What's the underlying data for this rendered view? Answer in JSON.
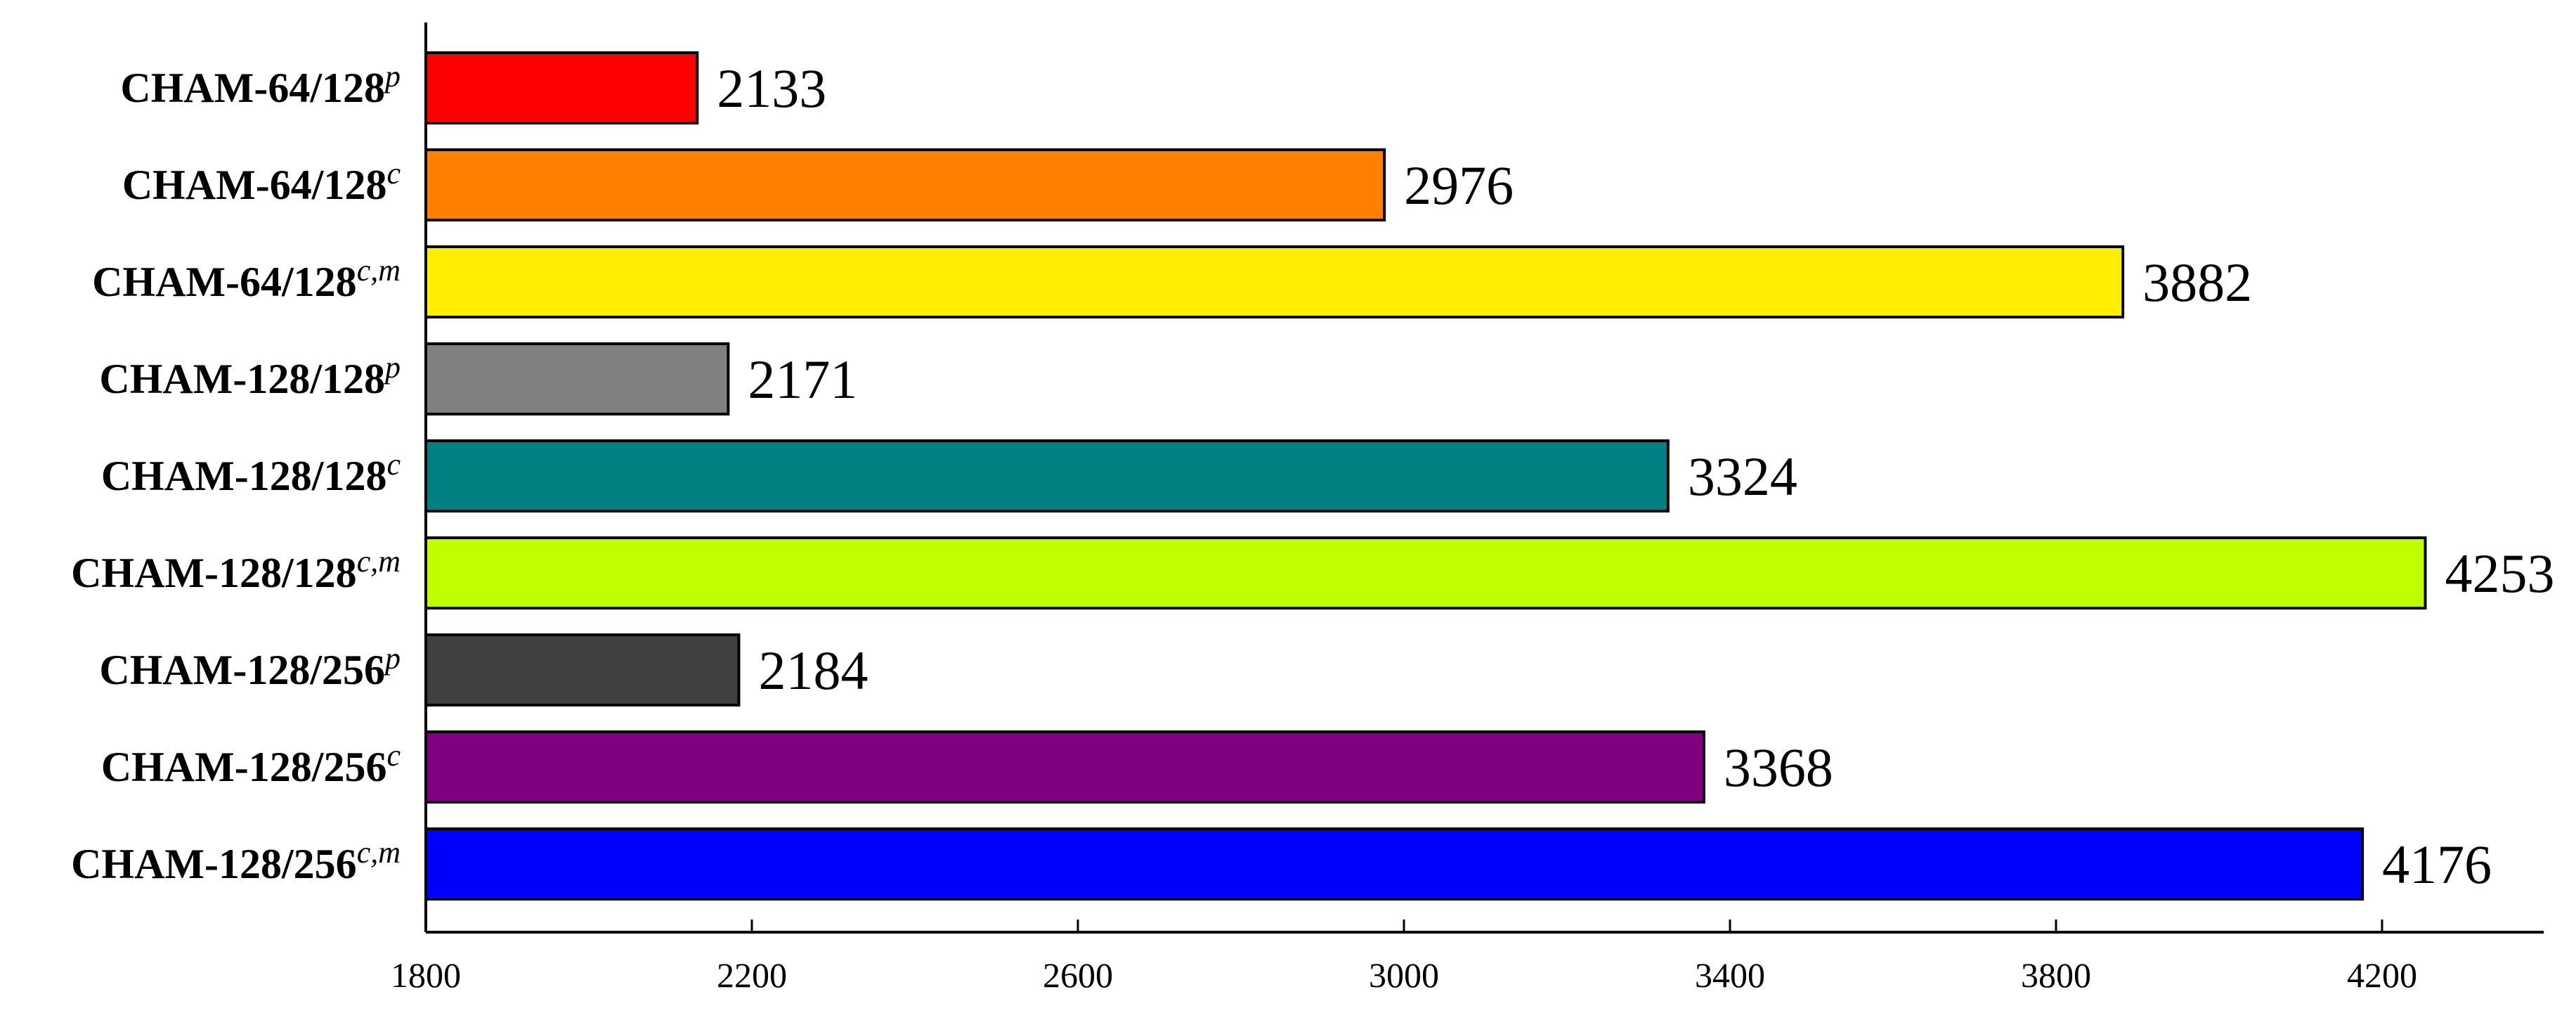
{
  "chart_data": {
    "type": "bar",
    "orientation": "horizontal",
    "title": "",
    "xlabel": "",
    "ylabel": "",
    "xlim": [
      1800,
      4400
    ],
    "xticks": [
      1800,
      2200,
      2600,
      3000,
      3400,
      3800,
      4200
    ],
    "grid": false,
    "legend": "none",
    "categories": [
      {
        "base": "CHAM-64/128",
        "sup": "p"
      },
      {
        "base": "CHAM-64/128",
        "sup": "c"
      },
      {
        "base": "CHAM-64/128",
        "sup": "c,m"
      },
      {
        "base": "CHAM-128/128",
        "sup": "p"
      },
      {
        "base": "CHAM-128/128",
        "sup": "c"
      },
      {
        "base": "CHAM-128/128",
        "sup": "c,m"
      },
      {
        "base": "CHAM-128/256",
        "sup": "p"
      },
      {
        "base": "CHAM-128/256",
        "sup": "c"
      },
      {
        "base": "CHAM-128/256",
        "sup": "c,m"
      }
    ],
    "values": [
      2133,
      2976,
      3882,
      2171,
      3324,
      4253,
      2184,
      3368,
      4176
    ],
    "colors": [
      "#ff0000",
      "#ff8000",
      "#ffee00",
      "#808080",
      "#008080",
      "#bfff00",
      "#404040",
      "#800080",
      "#0000ff"
    ]
  }
}
